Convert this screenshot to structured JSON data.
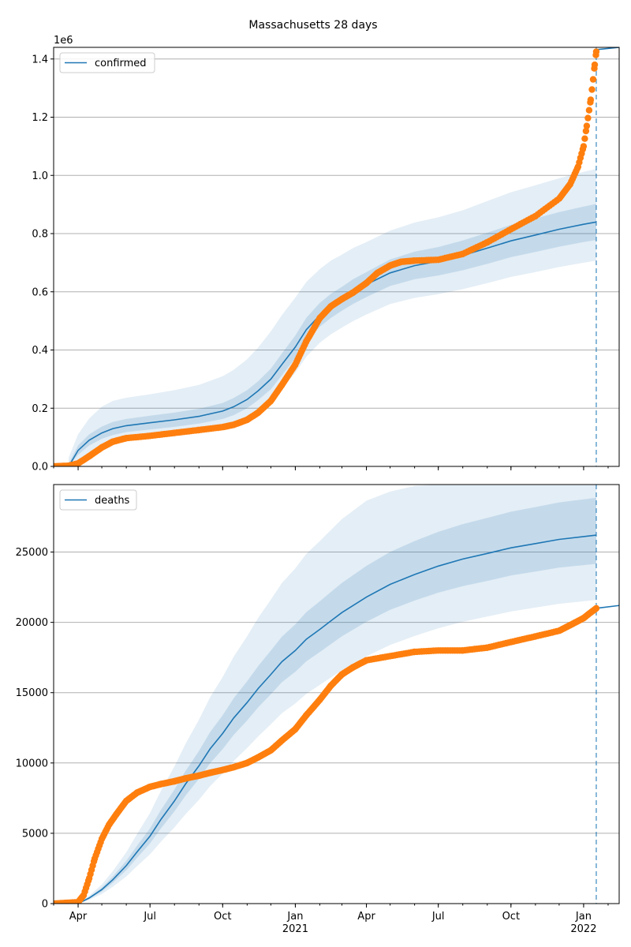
{
  "title": "Massachusetts 28 days",
  "colors": {
    "model": "#1f77b4",
    "observed": "#ff7f0e",
    "band": "#1f77b4",
    "grid": "#b0b0b0",
    "forecast_line": "#1f77b4"
  },
  "x_axis": {
    "range": [
      "2020-03-01",
      "2022-02-15"
    ],
    "ticks": [
      {
        "date": "2020-04-01",
        "label": "Apr"
      },
      {
        "date": "2020-07-01",
        "label": "Jul"
      },
      {
        "date": "2020-10-01",
        "label": "Oct"
      },
      {
        "date": "2021-01-01",
        "label": "Jan",
        "sub": "2021"
      },
      {
        "date": "2021-04-01",
        "label": "Apr"
      },
      {
        "date": "2021-07-01",
        "label": "Jul"
      },
      {
        "date": "2021-10-01",
        "label": "Oct"
      },
      {
        "date": "2022-01-01",
        "label": "Jan",
        "sub": "2022"
      }
    ],
    "forecast_start": "2022-01-17"
  },
  "chart_data": [
    {
      "type": "line",
      "legend": "confirmed",
      "legend_position": "top-left",
      "grid": true,
      "y_multiplier": "1e6",
      "ylim": [
        0,
        1.44
      ],
      "yticks": [
        {
          "v": 0.0,
          "label": "0.0"
        },
        {
          "v": 0.2,
          "label": "0.2"
        },
        {
          "v": 0.4,
          "label": "0.4"
        },
        {
          "v": 0.6,
          "label": "0.6"
        },
        {
          "v": 0.8,
          "label": "0.8"
        },
        {
          "v": 1.0,
          "label": "1.0"
        },
        {
          "v": 1.2,
          "label": "1.2"
        },
        {
          "v": 1.4,
          "label": "1.4"
        }
      ],
      "model": {
        "x": [
          "2020-03-20",
          "2020-04-01",
          "2020-04-15",
          "2020-05-01",
          "2020-05-15",
          "2020-06-01",
          "2020-07-01",
          "2020-08-01",
          "2020-09-01",
          "2020-10-01",
          "2020-10-15",
          "2020-11-01",
          "2020-11-15",
          "2020-12-01",
          "2020-12-15",
          "2021-01-01",
          "2021-01-15",
          "2021-02-01",
          "2021-02-15",
          "2021-03-01",
          "2021-03-15",
          "2021-04-01",
          "2021-05-01",
          "2021-06-01",
          "2021-07-01",
          "2021-08-01",
          "2021-09-01",
          "2021-10-01",
          "2021-11-01",
          "2021-12-01",
          "2022-01-01",
          "2022-01-17"
        ],
        "median": [
          0.0,
          0.055,
          0.09,
          0.115,
          0.13,
          0.14,
          0.15,
          0.16,
          0.172,
          0.19,
          0.205,
          0.23,
          0.26,
          0.3,
          0.35,
          0.41,
          0.47,
          0.52,
          0.55,
          0.575,
          0.6,
          0.625,
          0.665,
          0.69,
          0.705,
          0.725,
          0.75,
          0.775,
          0.795,
          0.815,
          0.832,
          0.84
        ],
        "band50_lo": [
          0.0,
          0.04,
          0.072,
          0.095,
          0.108,
          0.118,
          0.127,
          0.136,
          0.147,
          0.163,
          0.176,
          0.2,
          0.228,
          0.265,
          0.313,
          0.372,
          0.43,
          0.48,
          0.51,
          0.535,
          0.558,
          0.582,
          0.62,
          0.643,
          0.656,
          0.674,
          0.696,
          0.719,
          0.737,
          0.755,
          0.771,
          0.778
        ],
        "band50_hi": [
          0.01,
          0.072,
          0.11,
          0.137,
          0.153,
          0.163,
          0.174,
          0.185,
          0.198,
          0.218,
          0.235,
          0.262,
          0.293,
          0.336,
          0.388,
          0.45,
          0.511,
          0.562,
          0.593,
          0.617,
          0.643,
          0.668,
          0.711,
          0.738,
          0.754,
          0.776,
          0.803,
          0.83,
          0.852,
          0.874,
          0.893,
          0.902
        ],
        "band90_lo": [
          0.0,
          0.02,
          0.047,
          0.067,
          0.079,
          0.088,
          0.096,
          0.104,
          0.114,
          0.128,
          0.14,
          0.162,
          0.188,
          0.222,
          0.266,
          0.322,
          0.377,
          0.425,
          0.454,
          0.477,
          0.499,
          0.522,
          0.558,
          0.579,
          0.592,
          0.609,
          0.63,
          0.651,
          0.668,
          0.685,
          0.7,
          0.707
        ],
        "band90_hi": [
          0.03,
          0.11,
          0.165,
          0.205,
          0.225,
          0.236,
          0.248,
          0.262,
          0.28,
          0.31,
          0.332,
          0.368,
          0.409,
          0.464,
          0.52,
          0.58,
          0.634,
          0.678,
          0.707,
          0.728,
          0.75,
          0.771,
          0.81,
          0.838,
          0.856,
          0.88,
          0.912,
          0.942,
          0.966,
          0.99,
          1.012,
          1.022
        ]
      },
      "observed": {
        "x": [
          "2020-03-01",
          "2020-03-20",
          "2020-04-01",
          "2020-04-15",
          "2020-05-01",
          "2020-05-15",
          "2020-06-01",
          "2020-07-01",
          "2020-08-01",
          "2020-09-01",
          "2020-10-01",
          "2020-10-15",
          "2020-11-01",
          "2020-11-15",
          "2020-12-01",
          "2020-12-15",
          "2021-01-01",
          "2021-01-15",
          "2021-02-01",
          "2021-02-15",
          "2021-03-01",
          "2021-03-15",
          "2021-04-01",
          "2021-04-15",
          "2021-05-01",
          "2021-05-15",
          "2021-06-01",
          "2021-07-01",
          "2021-08-01",
          "2021-09-01",
          "2021-10-01",
          "2021-11-01",
          "2021-12-01",
          "2021-12-15",
          "2021-12-25",
          "2022-01-01",
          "2022-01-05",
          "2022-01-10",
          "2022-01-13",
          "2022-01-15",
          "2022-01-17"
        ],
        "y": [
          0.0,
          0.002,
          0.01,
          0.035,
          0.065,
          0.085,
          0.097,
          0.105,
          0.115,
          0.125,
          0.135,
          0.143,
          0.16,
          0.185,
          0.225,
          0.28,
          0.35,
          0.43,
          0.51,
          0.55,
          0.575,
          0.597,
          0.63,
          0.665,
          0.69,
          0.703,
          0.707,
          0.71,
          0.73,
          0.77,
          0.815,
          0.86,
          0.92,
          0.97,
          1.03,
          1.1,
          1.17,
          1.26,
          1.33,
          1.38,
          1.425
        ]
      },
      "forecast": {
        "x": [
          "2022-01-17",
          "2022-02-15"
        ],
        "y": [
          1.432,
          1.44
        ]
      }
    },
    {
      "type": "line",
      "legend": "deaths",
      "legend_position": "top-left",
      "grid": true,
      "ylim": [
        0,
        29800
      ],
      "yticks": [
        {
          "v": 0,
          "label": "0"
        },
        {
          "v": 5000,
          "label": "5000"
        },
        {
          "v": 10000,
          "label": "10000"
        },
        {
          "v": 15000,
          "label": "15000"
        },
        {
          "v": 20000,
          "label": "20000"
        },
        {
          "v": 25000,
          "label": "25000"
        }
      ],
      "model": {
        "x": [
          "2020-04-01",
          "2020-04-15",
          "2020-05-01",
          "2020-05-15",
          "2020-06-01",
          "2020-06-15",
          "2020-07-01",
          "2020-07-15",
          "2020-08-01",
          "2020-08-15",
          "2020-09-01",
          "2020-09-15",
          "2020-10-01",
          "2020-10-15",
          "2020-11-01",
          "2020-11-15",
          "2020-12-01",
          "2020-12-15",
          "2021-01-01",
          "2021-01-15",
          "2021-02-01",
          "2021-02-15",
          "2021-03-01",
          "2021-04-01",
          "2021-05-01",
          "2021-06-01",
          "2021-07-01",
          "2021-08-01",
          "2021-09-01",
          "2021-10-01",
          "2021-11-01",
          "2021-12-01",
          "2022-01-01",
          "2022-01-17"
        ],
        "median": [
          0,
          400,
          1000,
          1700,
          2700,
          3700,
          4800,
          6000,
          7300,
          8500,
          9800,
          11000,
          12100,
          13200,
          14300,
          15300,
          16300,
          17200,
          18000,
          18800,
          19500,
          20100,
          20700,
          21800,
          22700,
          23400,
          24000,
          24500,
          24900,
          25300,
          25600,
          25900,
          26100,
          26200
        ],
        "band50_lo": [
          0,
          330,
          860,
          1480,
          2380,
          3280,
          4280,
          5360,
          6560,
          7670,
          8870,
          9980,
          10990,
          12000,
          13020,
          13960,
          14890,
          15740,
          16480,
          17230,
          17890,
          18450,
          19010,
          20040,
          20890,
          21550,
          22110,
          22580,
          22950,
          23330,
          23610,
          23890,
          24070,
          24160
        ],
        "band50_hi": [
          0,
          470,
          1140,
          1930,
          3040,
          4140,
          5350,
          6680,
          8110,
          9430,
          10860,
          12190,
          13390,
          14600,
          15810,
          16900,
          17990,
          18980,
          19860,
          20730,
          21500,
          22160,
          22810,
          24020,
          25010,
          25780,
          26440,
          26990,
          27430,
          27870,
          28200,
          28530,
          28750,
          28860
        ],
        "band90_lo": [
          0,
          260,
          690,
          1200,
          1930,
          2680,
          3510,
          4410,
          5420,
          6360,
          7380,
          8350,
          9240,
          10140,
          11060,
          11900,
          12750,
          13540,
          14230,
          14920,
          15550,
          16080,
          16600,
          17590,
          18390,
          19030,
          19580,
          20040,
          20410,
          20770,
          21050,
          21320,
          21500,
          21590
        ],
        "band90_hi": [
          0,
          560,
          1360,
          2310,
          3650,
          4980,
          6440,
          8040,
          9760,
          11360,
          13080,
          14660,
          16110,
          17560,
          19010,
          20320,
          21620,
          22800,
          23840,
          24880,
          25780,
          26570,
          27340,
          28650,
          29300,
          29700,
          29800,
          29800,
          29800,
          29800,
          29800,
          29800,
          29800,
          29800
        ]
      },
      "observed": {
        "x": [
          "2020-03-01",
          "2020-04-01",
          "2020-04-08",
          "2020-04-15",
          "2020-04-22",
          "2020-05-01",
          "2020-05-10",
          "2020-05-20",
          "2020-06-01",
          "2020-06-15",
          "2020-07-01",
          "2020-07-15",
          "2020-08-01",
          "2020-08-15",
          "2020-09-01",
          "2020-09-15",
          "2020-10-01",
          "2020-10-15",
          "2020-11-01",
          "2020-11-15",
          "2020-12-01",
          "2020-12-15",
          "2021-01-01",
          "2021-01-15",
          "2021-02-01",
          "2021-02-15",
          "2021-03-01",
          "2021-03-15",
          "2021-04-01",
          "2021-05-01",
          "2021-06-01",
          "2021-07-01",
          "2021-08-01",
          "2021-09-01",
          "2021-10-01",
          "2021-11-01",
          "2021-12-01",
          "2021-12-15",
          "2022-01-01",
          "2022-01-10",
          "2022-01-17"
        ],
        "y": [
          0,
          100,
          600,
          1800,
          3200,
          4600,
          5600,
          6400,
          7300,
          7900,
          8300,
          8500,
          8700,
          8900,
          9100,
          9300,
          9500,
          9700,
          10000,
          10400,
          10900,
          11600,
          12400,
          13400,
          14500,
          15500,
          16300,
          16800,
          17300,
          17600,
          17900,
          18000,
          18000,
          18200,
          18600,
          19000,
          19400,
          19800,
          20300,
          20700,
          21000
        ]
      },
      "forecast": {
        "x": [
          "2022-01-17",
          "2022-02-15"
        ],
        "y": [
          21000,
          21200
        ]
      }
    }
  ]
}
